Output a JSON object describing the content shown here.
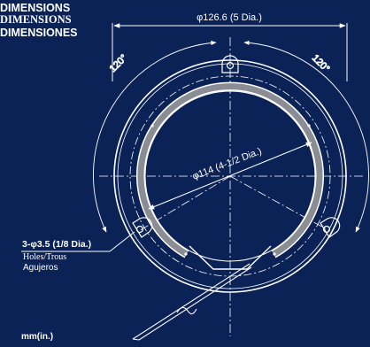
{
  "header": {
    "en": "DIMENSIONS",
    "fr": "DIMENSIONS",
    "es": "DIMENSIONES"
  },
  "dimensions": {
    "outer_diameter": "φ126.6 (5 Dia.)",
    "inner_diameter": "φ114 (4-1/2 Dia.)",
    "angle_left": "120°",
    "angle_right": "120°",
    "holes": "3-φ3.5 (1/8 Dia.)",
    "holes_en": "Holes/Trous",
    "holes_es": "Agujeros",
    "unit": "mm(in.)"
  },
  "colors": {
    "background": "#0b2257",
    "line": "#ffffff",
    "ring_fill": "#8a8d93"
  }
}
